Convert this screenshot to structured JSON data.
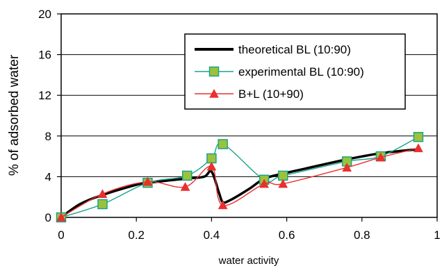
{
  "chart_data": {
    "type": "line",
    "title": "",
    "xlabel": "water activity",
    "ylabel": "% of adsorbed water",
    "xlim": [
      0,
      1
    ],
    "ylim": [
      0,
      20
    ],
    "xticks": [
      0,
      0.2,
      0.4,
      0.6,
      0.8,
      1
    ],
    "xtick_labels": [
      "0",
      "0.2",
      "0.4",
      "0.6",
      "0.8",
      "1"
    ],
    "yticks": [
      0,
      4,
      8,
      12,
      16,
      20
    ],
    "ytick_labels": [
      "0",
      "4",
      "8",
      "12",
      "16",
      "20"
    ],
    "grid": "horizontal",
    "legend_position": "top-right",
    "series": [
      {
        "name": "theoretical BL (10:90)",
        "color": "#000000",
        "marker": "none",
        "x": [
          0,
          0.05,
          0.11,
          0.2,
          0.23,
          0.33,
          0.38,
          0.4,
          0.42,
          0.43,
          0.45,
          0.5,
          0.54,
          0.59,
          0.65,
          0.76,
          0.85,
          0.95
        ],
        "y": [
          0,
          1.3,
          2.2,
          3.2,
          3.4,
          3.8,
          4.0,
          4.5,
          2.4,
          1.5,
          1.7,
          2.8,
          3.8,
          4.3,
          4.8,
          5.7,
          6.3,
          6.7
        ]
      },
      {
        "name": "experimental BL (10:90)",
        "color": "#1aa38c",
        "marker": "square",
        "x": [
          0,
          0.11,
          0.23,
          0.335,
          0.4,
          0.43,
          0.54,
          0.59,
          0.76,
          0.85,
          0.95
        ],
        "y": [
          0,
          1.3,
          3.4,
          4.1,
          5.8,
          7.2,
          3.7,
          4.1,
          5.5,
          6.0,
          7.9
        ]
      },
      {
        "name": "B+L (10+90)",
        "color": "#e8302f",
        "marker": "triangle",
        "x": [
          0,
          0.11,
          0.23,
          0.33,
          0.4,
          0.43,
          0.54,
          0.59,
          0.76,
          0.85,
          0.95
        ],
        "y": [
          0,
          2.3,
          3.5,
          3.0,
          5.0,
          1.2,
          3.3,
          3.3,
          4.9,
          5.9,
          6.8
        ]
      }
    ]
  }
}
